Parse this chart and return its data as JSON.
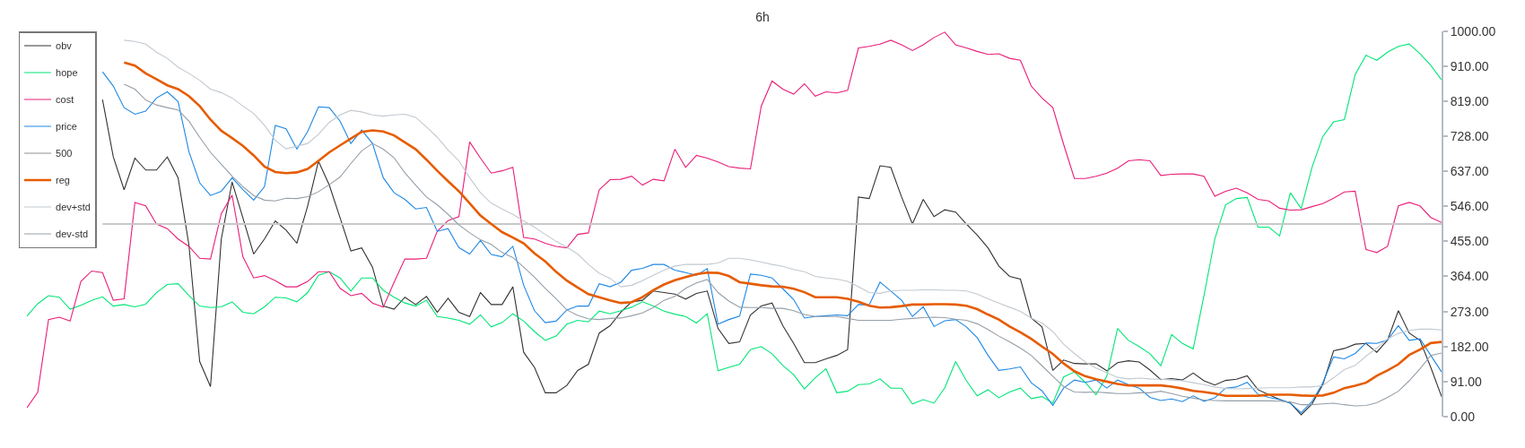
{
  "chart_data": {
    "type": "line",
    "title": "6h",
    "categories": [
      null,
      null,
      null,
      null,
      null,
      null,
      null,
      null,
      null,
      null,
      null,
      null,
      null,
      null,
      null,
      null,
      null,
      null,
      null,
      null,
      null,
      null,
      null,
      null,
      null,
      null,
      null,
      null,
      null,
      null,
      null,
      null,
      null,
      null,
      null,
      null,
      null,
      null,
      null,
      null,
      null,
      null,
      null,
      null,
      null,
      null,
      null,
      null,
      null,
      null,
      null,
      null,
      null,
      null,
      null,
      null,
      null,
      null,
      null,
      null,
      null,
      null,
      null,
      null,
      null,
      null,
      null,
      null,
      null,
      null,
      null,
      null,
      null,
      null,
      null,
      null,
      null,
      null,
      null,
      null,
      null,
      null,
      null,
      null,
      null,
      null,
      null,
      null,
      null,
      null,
      null,
      null,
      null,
      null,
      null,
      null,
      null,
      null,
      null,
      null,
      null,
      null,
      null,
      null,
      null,
      null,
      null,
      null,
      null,
      null,
      null,
      null,
      null,
      null,
      null,
      null,
      null,
      null,
      null,
      null,
      null,
      null,
      null,
      null,
      null,
      null,
      null,
      null,
      null,
      null,
      null,
      null
    ],
    "series": [
      {
        "name": "obv",
        "color": "#333333",
        "values": [
          null,
          null,
          null,
          null,
          null,
          null,
          null,
          823,
          674,
          589,
          671,
          640,
          640,
          674,
          620,
          446,
          143,
          78,
          461,
          609,
          516,
          422,
          461,
          508,
          484,
          450,
          547,
          663,
          601,
          516,
          430,
          438,
          388,
          287,
          279,
          310,
          291,
          312,
          271,
          307,
          271,
          260,
          322,
          291,
          291,
          337,
          167,
          128,
          62,
          62,
          81,
          120,
          136,
          217,
          236,
          271,
          298,
          302,
          326,
          322,
          318,
          305,
          320,
          326,
          229,
          190,
          194,
          264,
          287,
          295,
          236,
          190,
          140,
          140,
          150,
          159,
          174,
          570,
          566,
          651,
          647,
          570,
          500,
          564,
          519,
          537,
          531,
          500,
          471,
          438,
          391,
          364,
          357,
          256,
          233,
          120,
          147,
          138,
          137,
          137,
          119,
          140,
          145,
          142,
          121,
          96,
          99,
          95,
          113,
          93,
          82,
          94,
          97,
          106,
          70,
          57,
          45,
          35,
          5,
          33,
          83,
          171,
          177,
          188,
          190,
          167,
          199,
          275,
          217,
          198,
          128,
          52
        ]
      },
      {
        "name": "hope",
        "color": "#00e676",
        "values": [
          261,
          293,
          314,
          310,
          279,
          289,
          302,
          311,
          287,
          291,
          285,
          292,
          322,
          343,
          345,
          314,
          287,
          283,
          285,
          298,
          271,
          267,
          285,
          310,
          308,
          298,
          322,
          367,
          376,
          360,
          326,
          360,
          360,
          328,
          310,
          295,
          287,
          302,
          260,
          256,
          250,
          240,
          264,
          233,
          244,
          267,
          248,
          221,
          198,
          209,
          240,
          250,
          246,
          274,
          267,
          275,
          284,
          298,
          287,
          274,
          266,
          260,
          243,
          267,
          119,
          128,
          136,
          174,
          182,
          163,
          133,
          109,
          72,
          101,
          124,
          62,
          66,
          83,
          85,
          98,
          74,
          74,
          33,
          44,
          35,
          75,
          143,
          93,
          54,
          70,
          49,
          64,
          74,
          47,
          52,
          35,
          103,
          116,
          89,
          57,
          105,
          229,
          198,
          182,
          163,
          132,
          213,
          190,
          176,
          314,
          461,
          550,
          566,
          569,
          492,
          492,
          469,
          581,
          540,
          647,
          727,
          765,
          771,
          888,
          938,
          925,
          946,
          961,
          967,
          942,
          912,
          874
        ]
      },
      {
        "name": "cost",
        "color": "#e91e78",
        "values": [
          23,
          63,
          252,
          258,
          248,
          351,
          378,
          374,
          302,
          306,
          556,
          547,
          500,
          488,
          461,
          442,
          411,
          409,
          527,
          575,
          415,
          360,
          366,
          353,
          337,
          337,
          351,
          376,
          376,
          333,
          314,
          320,
          295,
          284,
          349,
          409,
          409,
          411,
          481,
          509,
          519,
          713,
          671,
          632,
          638,
          647,
          465,
          461,
          450,
          442,
          438,
          473,
          477,
          589,
          615,
          616,
          624,
          601,
          616,
          612,
          694,
          647,
          678,
          671,
          661,
          649,
          645,
          643,
          806,
          871,
          850,
          837,
          864,
          832,
          843,
          840,
          847,
          957,
          961,
          967,
          977,
          965,
          950,
          965,
          984,
          998,
          965,
          957,
          948,
          940,
          942,
          930,
          925,
          858,
          827,
          802,
          707,
          618,
          618,
          624,
          632,
          645,
          664,
          667,
          664,
          626,
          629,
          630,
          630,
          624,
          572,
          585,
          593,
          581,
          564,
          560,
          541,
          536,
          537,
          545,
          553,
          567,
          583,
          585,
          434,
          426,
          442,
          547,
          556,
          547,
          517,
          504
        ]
      },
      {
        "name": "price",
        "color": "#1e88e5",
        "values": [
          null,
          null,
          null,
          null,
          null,
          null,
          null,
          895,
          858,
          802,
          785,
          793,
          827,
          843,
          818,
          688,
          607,
          574,
          585,
          620,
          589,
          562,
          597,
          756,
          747,
          694,
          740,
          804,
          802,
          767,
          709,
          744,
          709,
          620,
          581,
          564,
          539,
          543,
          481,
          488,
          439,
          422,
          457,
          421,
          415,
          442,
          341,
          275,
          244,
          248,
          277,
          287,
          287,
          345,
          337,
          349,
          380,
          385,
          395,
          395,
          380,
          374,
          367,
          384,
          240,
          252,
          261,
          370,
          367,
          360,
          332,
          304,
          256,
          260,
          262,
          264,
          262,
          291,
          290,
          349,
          326,
          302,
          260,
          285,
          234,
          249,
          252,
          233,
          205,
          159,
          120,
          124,
          129,
          88,
          67,
          29,
          74,
          95,
          89,
          95,
          74,
          95,
          83,
          74,
          50,
          42,
          46,
          39,
          54,
          40,
          49,
          74,
          77,
          89,
          58,
          50,
          44,
          35,
          10,
          39,
          88,
          155,
          150,
          164,
          191,
          190,
          199,
          236,
          198,
          202,
          159,
          116
        ]
      },
      {
        "name": "500",
        "color": "#c8c8c8",
        "values": [
          null,
          null,
          null,
          null,
          null,
          null,
          null,
          500,
          500,
          500,
          500,
          500,
          500,
          500,
          500,
          500,
          500,
          500,
          500,
          500,
          500,
          500,
          500,
          500,
          500,
          500,
          500,
          500,
          500,
          500,
          500,
          500,
          500,
          500,
          500,
          500,
          500,
          500,
          500,
          500,
          500,
          500,
          500,
          500,
          500,
          500,
          500,
          500,
          500,
          500,
          500,
          500,
          500,
          500,
          500,
          500,
          500,
          500,
          500,
          500,
          500,
          500,
          500,
          500,
          500,
          500,
          500,
          500,
          500,
          500,
          500,
          500,
          500,
          500,
          500,
          500,
          500,
          500,
          500,
          500,
          500,
          500,
          500,
          500,
          500,
          500,
          500,
          500,
          500,
          500,
          500,
          500,
          500,
          500,
          500,
          500,
          500,
          500,
          500,
          500,
          500,
          500,
          500,
          500,
          500,
          500,
          500,
          500,
          500,
          500,
          500,
          500,
          500,
          500,
          500,
          500,
          500,
          500,
          500,
          500,
          500,
          500,
          500,
          500,
          500,
          500,
          500,
          500,
          500,
          500,
          500,
          500
        ]
      },
      {
        "name": "reg",
        "color": "#e65c00",
        "values": [
          null,
          null,
          null,
          null,
          null,
          null,
          null,
          null,
          null,
          919,
          911,
          891,
          876,
          860,
          850,
          832,
          806,
          771,
          742,
          723,
          703,
          678,
          649,
          635,
          632,
          634,
          643,
          664,
          686,
          704,
          722,
          739,
          743,
          740,
          730,
          712,
          694,
          667,
          638,
          611,
          585,
          554,
          522,
          500,
          479,
          465,
          450,
          424,
          403,
          376,
          353,
          335,
          318,
          310,
          302,
          295,
          297,
          310,
          328,
          343,
          354,
          362,
          370,
          374,
          373,
          365,
          349,
          345,
          341,
          338,
          337,
          332,
          323,
          310,
          310,
          310,
          306,
          298,
          288,
          283,
          284,
          287,
          291,
          291,
          292,
          292,
          291,
          288,
          279,
          265,
          252,
          234,
          219,
          202,
          182,
          163,
          138,
          118,
          105,
          97,
          91,
          85,
          81,
          81,
          81,
          81,
          78,
          73,
          67,
          64,
          60,
          54,
          54,
          54,
          54,
          57,
          57,
          57,
          55,
          54,
          55,
          62,
          74,
          80,
          88,
          106,
          120,
          136,
          160,
          174,
          191,
          194
        ]
      },
      {
        "name": "dev+std",
        "color": "#c2c9d0",
        "values": [
          null,
          null,
          null,
          null,
          null,
          null,
          null,
          null,
          null,
          977,
          974,
          967,
          946,
          930,
          907,
          891,
          873,
          850,
          841,
          827,
          806,
          787,
          756,
          717,
          695,
          702,
          709,
          733,
          764,
          783,
          795,
          791,
          783,
          780,
          783,
          785,
          777,
          752,
          725,
          692,
          664,
          620,
          581,
          554,
          539,
          525,
          508,
          492,
          473,
          455,
          440,
          422,
          395,
          372,
          359,
          337,
          341,
          353,
          367,
          380,
          391,
          395,
          395,
          395,
          399,
          411,
          411,
          407,
          401,
          395,
          390,
          382,
          376,
          364,
          360,
          357,
          351,
          337,
          322,
          320,
          326,
          328,
          328,
          329,
          329,
          328,
          328,
          326,
          318,
          306,
          295,
          284,
          273,
          256,
          243,
          221,
          188,
          164,
          142,
          126,
          114,
          102,
          98,
          100,
          98,
          97,
          95,
          93,
          88,
          83,
          77,
          73,
          72,
          73,
          74,
          75,
          75,
          75,
          77,
          77,
          81,
          101,
          122,
          133,
          157,
          178,
          202,
          216,
          224,
          227,
          227,
          225
        ]
      },
      {
        "name": "dev-std",
        "color": "#959fa9",
        "values": [
          null,
          null,
          null,
          null,
          null,
          null,
          null,
          null,
          null,
          863,
          850,
          822,
          809,
          802,
          796,
          767,
          725,
          686,
          655,
          624,
          597,
          574,
          562,
          560,
          567,
          566,
          571,
          584,
          602,
          622,
          657,
          690,
          709,
          694,
          672,
          633,
          601,
          570,
          550,
          525,
          498,
          477,
          459,
          447,
          426,
          413,
          388,
          362,
          333,
          306,
          277,
          263,
          254,
          252,
          255,
          256,
          262,
          269,
          283,
          302,
          312,
          333,
          347,
          356,
          322,
          300,
          284,
          283,
          283,
          281,
          281,
          275,
          265,
          260,
          260,
          260,
          255,
          250,
          250,
          250,
          250,
          253,
          255,
          257,
          258,
          257,
          253,
          250,
          241,
          226,
          209,
          194,
          178,
          159,
          132,
          105,
          78,
          64,
          63,
          64,
          62,
          60,
          60,
          62,
          62,
          66,
          60,
          53,
          48,
          43,
          42,
          41,
          41,
          41,
          41,
          41,
          40,
          38,
          31,
          31,
          33,
          35,
          31,
          28,
          29,
          36,
          50,
          66,
          93,
          124,
          159,
          165
        ]
      }
    ],
    "ylim": [
      0,
      1000
    ],
    "yticks": [
      {
        "value": 0,
        "label": "0.00"
      },
      {
        "value": 91,
        "label": "91.00"
      },
      {
        "value": 182,
        "label": "182.00"
      },
      {
        "value": 273,
        "label": "273.00"
      },
      {
        "value": 364,
        "label": "364.00"
      },
      {
        "value": 455,
        "label": "455.00"
      },
      {
        "value": 546,
        "label": "546.00"
      },
      {
        "value": 637,
        "label": "637.00"
      },
      {
        "value": 728,
        "label": "728.00"
      },
      {
        "value": 819,
        "label": "819.00"
      },
      {
        "value": 910,
        "label": "910.00"
      },
      {
        "value": 1000,
        "label": "1000.00"
      }
    ],
    "tick_labels": "y",
    "legend": "top left"
  }
}
